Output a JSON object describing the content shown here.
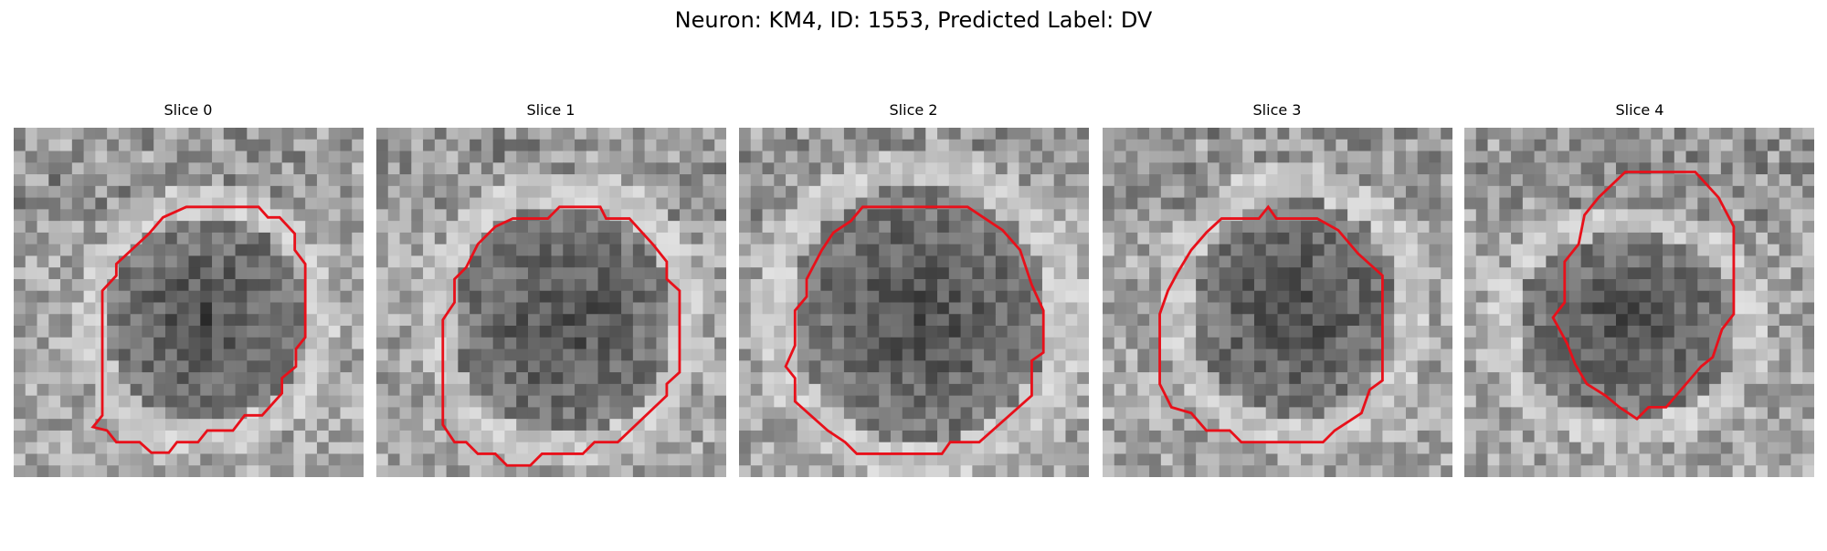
{
  "header": {
    "title": "Neuron: KM4, ID: 1553, Predicted Label: DV"
  },
  "panels": [
    {
      "title": "Slice 0"
    },
    {
      "title": "Slice 1"
    },
    {
      "title": "Slice 2"
    },
    {
      "title": "Slice 3"
    },
    {
      "title": "Slice 4"
    }
  ]
}
